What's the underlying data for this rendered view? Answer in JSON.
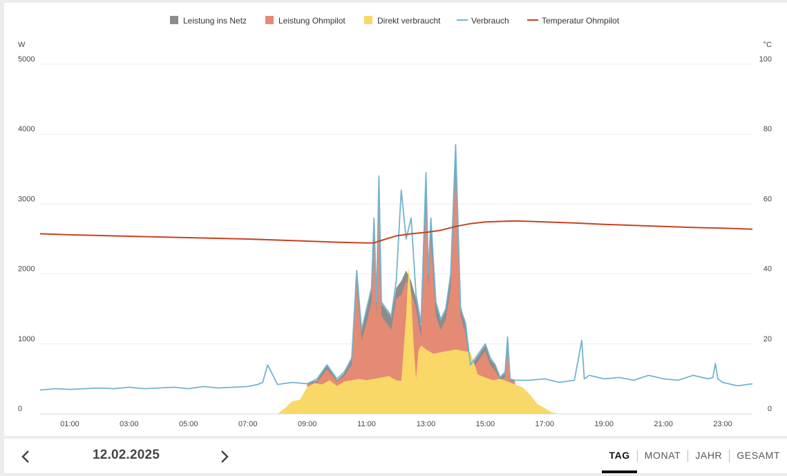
{
  "chart_data": {
    "type": "area",
    "legend": [
      {
        "name": "Leistung ins Netz",
        "color": "#8c8c8c",
        "marker": "square"
      },
      {
        "name": "Leistung Ohmpilot",
        "color": "#e58a74",
        "marker": "square"
      },
      {
        "name": "Direkt verbraucht",
        "color": "#f9d867",
        "marker": "square"
      },
      {
        "name": "Verbrauch",
        "color": "#71b3cf",
        "marker": "line"
      },
      {
        "name": "Temperatur Ohmpilot",
        "color": "#c8401f",
        "marker": "line"
      }
    ],
    "legend_position": "top-center",
    "grid": true,
    "y_left": {
      "unit": "W",
      "min": 0,
      "max": 5000,
      "ticks": [
        "0",
        "1000",
        "2000",
        "3000",
        "4000",
        "5000"
      ]
    },
    "y_right": {
      "unit": "°C",
      "min": 0,
      "max": 100,
      "ticks": [
        "0",
        "20",
        "40",
        "60",
        "80",
        "100"
      ]
    },
    "x_ticks": [
      "01:00",
      "03:00",
      "05:00",
      "07:00",
      "09:00",
      "11:00",
      "13:00",
      "15:00",
      "17:00",
      "19:00",
      "21:00",
      "23:00"
    ],
    "series": {
      "verbrauch": {
        "unit": "W",
        "x": [
          "00:00",
          "00:30",
          "01:00",
          "01:30",
          "02:00",
          "02:30",
          "03:00",
          "03:30",
          "04:00",
          "04:30",
          "05:00",
          "05:30",
          "06:00",
          "06:30",
          "07:00",
          "07:20",
          "07:30",
          "07:40",
          "08:00",
          "08:30",
          "09:00",
          "09:20",
          "09:40",
          "10:00",
          "10:15",
          "10:30",
          "10:40",
          "10:50",
          "11:00",
          "11:10",
          "11:15",
          "11:20",
          "11:25",
          "11:30",
          "11:40",
          "11:50",
          "12:00",
          "12:10",
          "12:20",
          "12:30",
          "12:40",
          "12:50",
          "13:00",
          "13:05",
          "13:10",
          "13:20",
          "13:30",
          "13:40",
          "13:50",
          "14:00",
          "14:10",
          "14:20",
          "14:30",
          "14:40",
          "15:00",
          "15:10",
          "15:20",
          "15:30",
          "15:40",
          "15:45",
          "15:50",
          "16:00",
          "16:30",
          "17:00",
          "17:30",
          "18:00",
          "18:15",
          "18:20",
          "18:30",
          "19:00",
          "19:30",
          "20:00",
          "20:30",
          "21:00",
          "21:30",
          "22:00",
          "22:30",
          "22:40",
          "22:45",
          "22:50",
          "23:00",
          "23:30",
          "24:00"
        ],
        "y": [
          340,
          360,
          350,
          360,
          370,
          360,
          380,
          360,
          370,
          380,
          360,
          390,
          370,
          380,
          390,
          420,
          450,
          700,
          420,
          450,
          430,
          500,
          700,
          500,
          600,
          800,
          2050,
          1200,
          1500,
          1800,
          2800,
          1600,
          3400,
          1600,
          1500,
          1400,
          1900,
          3200,
          2500,
          2800,
          1700,
          1300,
          3450,
          2000,
          2800,
          1600,
          1350,
          1500,
          2000,
          3850,
          1500,
          1300,
          700,
          800,
          1000,
          800,
          700,
          520,
          600,
          1100,
          500,
          480,
          480,
          500,
          450,
          480,
          1050,
          500,
          550,
          500,
          520,
          480,
          550,
          500,
          480,
          550,
          500,
          520,
          720,
          500,
          450,
          400,
          430
        ]
      },
      "leistung_ins_netz": {
        "unit": "W",
        "x": [
          "09:00",
          "09:20",
          "09:40",
          "10:00",
          "10:15",
          "10:30",
          "10:40",
          "10:50",
          "11:00",
          "11:10",
          "11:15",
          "11:20",
          "11:25",
          "11:30",
          "11:40",
          "11:50",
          "12:00",
          "12:10",
          "12:20",
          "12:30",
          "12:40",
          "12:50",
          "13:00",
          "13:05",
          "13:10",
          "13:20",
          "13:30",
          "13:40",
          "13:50",
          "14:00",
          "14:10",
          "14:20",
          "14:30",
          "14:40",
          "15:00",
          "15:10",
          "15:20",
          "15:30",
          "15:40",
          "15:45",
          "15:50",
          "16:00"
        ],
        "y": [
          430,
          480,
          700,
          480,
          580,
          780,
          2050,
          1180,
          1480,
          1780,
          2780,
          1580,
          3380,
          1580,
          1480,
          1380,
          1800,
          1900,
          2050,
          1900,
          1650,
          1250,
          3430,
          1980,
          2780,
          1580,
          1330,
          1480,
          1980,
          3830,
          1560,
          1280,
          690,
          780,
          980,
          780,
          690,
          520,
          580,
          1080,
          490,
          470
        ]
      },
      "leistung_ohmpilot": {
        "unit": "W",
        "x": [
          "09:00",
          "09:20",
          "09:40",
          "10:00",
          "10:15",
          "10:30",
          "10:40",
          "10:50",
          "11:00",
          "11:10",
          "11:15",
          "11:20",
          "11:25",
          "11:30",
          "11:40",
          "11:50",
          "12:00",
          "12:10",
          "12:20",
          "12:30",
          "12:40",
          "12:50",
          "13:00",
          "13:05",
          "13:10",
          "13:20",
          "13:30",
          "13:40",
          "13:50",
          "14:00",
          "14:10",
          "14:20",
          "14:30",
          "14:40",
          "15:00",
          "15:10",
          "15:20",
          "15:30",
          "15:40",
          "15:45",
          "15:50",
          "16:00"
        ],
        "y": [
          420,
          450,
          640,
          460,
          540,
          700,
          1880,
          1050,
          1300,
          1600,
          2500,
          1400,
          3000,
          1400,
          1300,
          1200,
          1650,
          1700,
          1900,
          1750,
          1500,
          1100,
          3100,
          1800,
          2500,
          1400,
          1200,
          1350,
          1800,
          3500,
          1400,
          1150,
          620,
          700,
          900,
          700,
          620,
          480,
          520,
          950,
          470,
          460
        ]
      },
      "direkt_verbraucht": {
        "unit": "W",
        "x": [
          "08:00",
          "08:15",
          "08:30",
          "08:45",
          "09:00",
          "09:15",
          "09:30",
          "09:45",
          "10:00",
          "10:15",
          "10:30",
          "10:45",
          "11:00",
          "11:15",
          "11:30",
          "11:45",
          "12:00",
          "12:10",
          "12:20",
          "12:25",
          "12:30",
          "12:35",
          "12:40",
          "12:45",
          "12:50",
          "13:00",
          "13:15",
          "13:30",
          "13:45",
          "14:00",
          "14:15",
          "14:30",
          "14:45",
          "15:00",
          "15:15",
          "15:30",
          "15:45",
          "16:00",
          "16:15",
          "16:30",
          "16:45",
          "17:00",
          "17:15",
          "17:30"
        ],
        "y": [
          0,
          80,
          180,
          200,
          380,
          440,
          420,
          480,
          400,
          460,
          480,
          500,
          480,
          500,
          520,
          540,
          480,
          470,
          1400,
          2100,
          1700,
          1000,
          500,
          900,
          980,
          920,
          860,
          880,
          900,
          920,
          900,
          880,
          560,
          520,
          480,
          500,
          460,
          420,
          380,
          280,
          140,
          80,
          20,
          0
        ]
      },
      "temperatur_ohmpilot": {
        "unit": "°C",
        "x": [
          "00:00",
          "01:00",
          "02:00",
          "03:00",
          "04:00",
          "05:00",
          "06:00",
          "07:00",
          "08:00",
          "09:00",
          "10:00",
          "11:00",
          "11:15",
          "11:30",
          "12:00",
          "12:30",
          "13:00",
          "13:30",
          "14:00",
          "14:30",
          "15:00",
          "16:00",
          "17:00",
          "18:00",
          "19:00",
          "20:00",
          "21:00",
          "22:00",
          "23:00",
          "24:00"
        ],
        "y": [
          51.5,
          51.2,
          51.0,
          50.8,
          50.6,
          50.4,
          50.2,
          50.0,
          49.7,
          49.4,
          49.1,
          48.9,
          48.9,
          49.6,
          50.9,
          51.5,
          51.9,
          52.5,
          53.6,
          54.4,
          54.9,
          55.2,
          54.9,
          54.6,
          54.2,
          53.9,
          53.6,
          53.3,
          53.1,
          52.8
        ]
      }
    }
  },
  "footer": {
    "date": "12.02.2025",
    "tabs": [
      "TAG",
      "MONAT",
      "JAHR",
      "GESAMT"
    ],
    "active_tab": "TAG",
    "prev_icon": "chevron-left-icon",
    "next_icon": "chevron-right-icon"
  }
}
